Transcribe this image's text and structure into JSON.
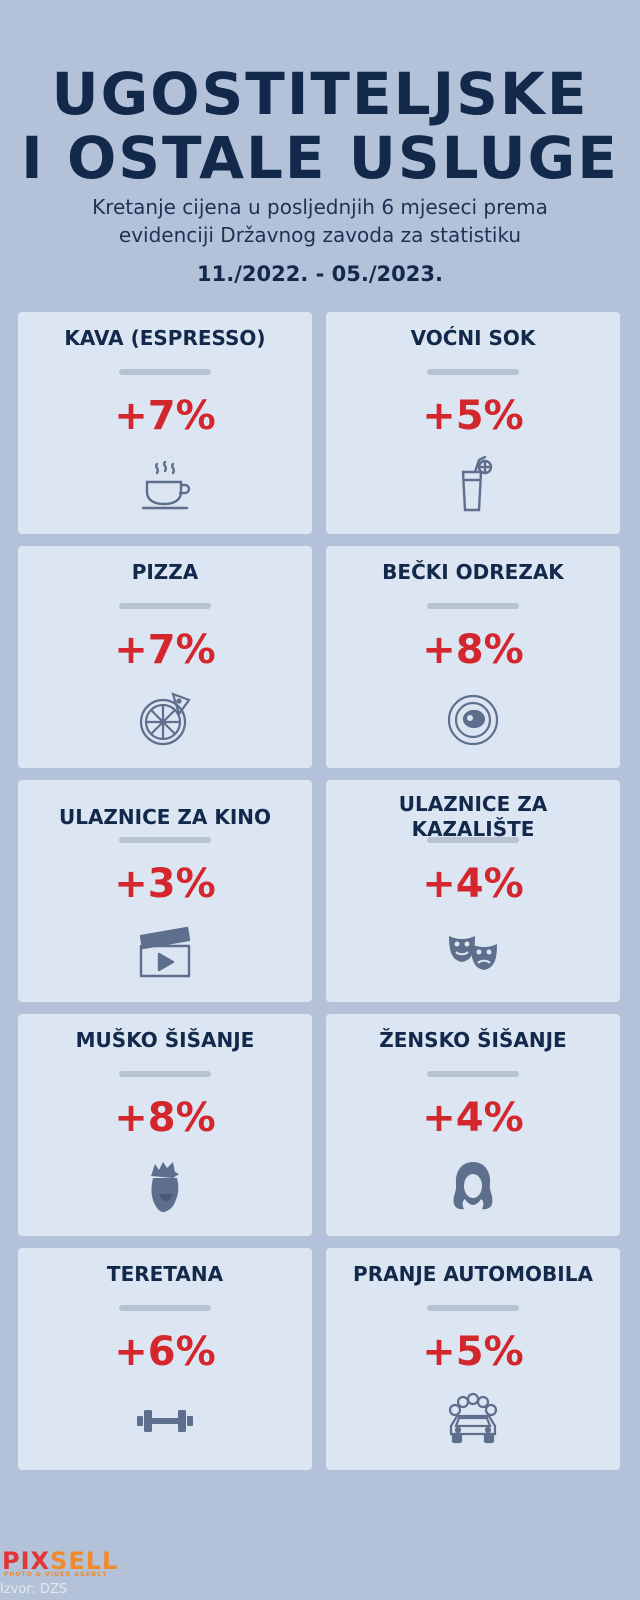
{
  "header": {
    "title_line1": "UGOSTITELJSKE",
    "title_line2": "I OSTALE USLUGE",
    "subtitle_line1": "Kretanje cijena u posljednjih 6 mjeseci prema",
    "subtitle_line2": "evidenciji Državnog zavoda za statistiku",
    "period": "11./2022. - 05./2023."
  },
  "cards": [
    {
      "title_line1": "KAVA (ESPRESSO)",
      "title_line2": "",
      "value": "+7%",
      "icon": "coffee-cup-icon"
    },
    {
      "title_line1": "VOĆNI SOK",
      "title_line2": "",
      "value": "+5%",
      "icon": "juice-glass-icon"
    },
    {
      "title_line1": "PIZZA",
      "title_line2": "",
      "value": "+7%",
      "icon": "pizza-icon"
    },
    {
      "title_line1": "BEČKI ODREZAK",
      "title_line2": "",
      "value": "+8%",
      "icon": "plate-icon"
    },
    {
      "title_line1": "ULAZNICE ZA KINO",
      "title_line2": "",
      "value": "+3%",
      "icon": "clapperboard-icon"
    },
    {
      "title_line1": "ULAZNICE ZA",
      "title_line2": "KAZALIŠTE",
      "value": "+4%",
      "icon": "theater-masks-icon"
    },
    {
      "title_line1": "MUŠKO ŠIŠANJE",
      "title_line2": "",
      "value": "+8%",
      "icon": "man-haircut-icon"
    },
    {
      "title_line1": "ŽENSKO ŠIŠANJE",
      "title_line2": "",
      "value": "+4%",
      "icon": "woman-hair-icon"
    },
    {
      "title_line1": "TERETANA",
      "title_line2": "",
      "value": "+6%",
      "icon": "dumbbell-icon"
    },
    {
      "title_line1": "PRANJE AUTOMOBILA",
      "title_line2": "",
      "value": "+5%",
      "icon": "car-wash-icon"
    }
  ],
  "footer": {
    "logo_part1": "PIX",
    "logo_part2": "SELL",
    "logo_tagline": "PHOTO & VIDEO AGENCY",
    "source": "Izvor: DZS"
  },
  "colors": {
    "background": "#b3c2d8",
    "card": "#dce5f2",
    "title": "#13294b",
    "value": "#d3262d",
    "icon": "#5d6f8c"
  }
}
